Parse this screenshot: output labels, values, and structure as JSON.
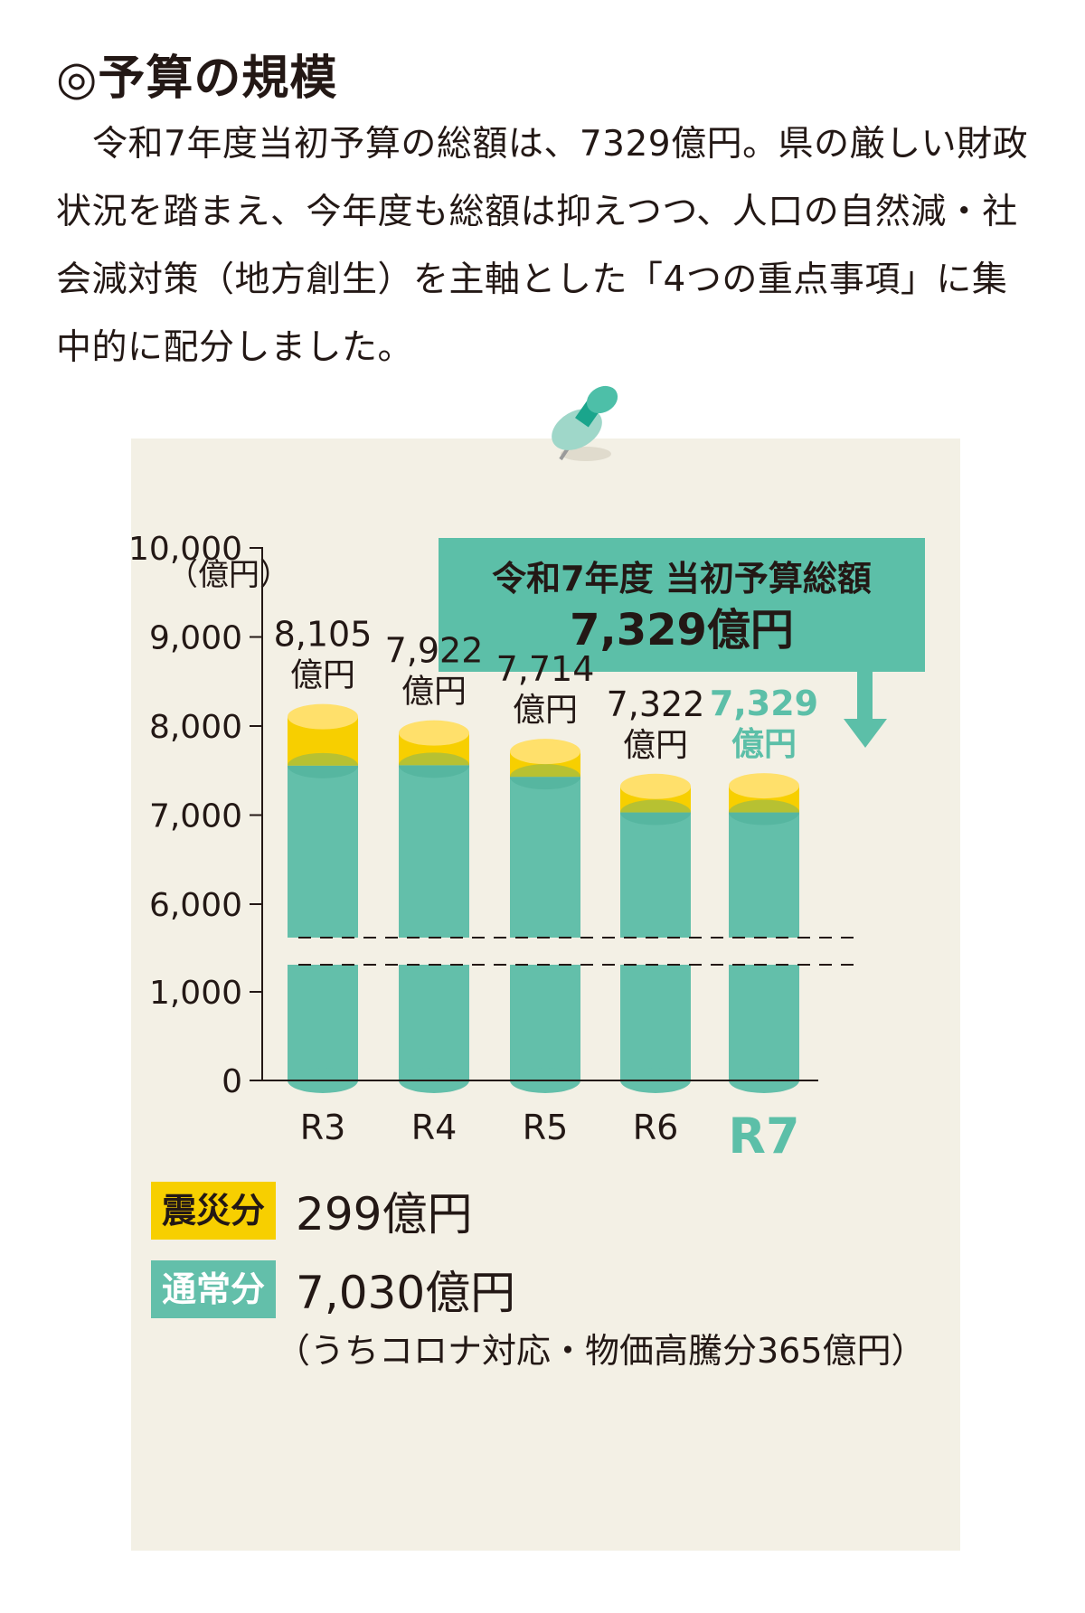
{
  "heading": "◎予算の規模",
  "paragraph": "令和7年度当初予算の総額は、7329億円。県の厳しい財政状況を踏まえ、今年度も総額は抑えつつ、人口の自然減・社会減対策（地方創生）を主軸とした「4つの重点事項」に集中的に配分しました。",
  "callout": {
    "line1": "令和7年度 当初予算総額",
    "line2": "7,329億円"
  },
  "colors": {
    "normal": "#63bfaa",
    "normal_dark": "#3fa58e",
    "normal_top": "#7fd0bd",
    "disaster": "#f7cf00",
    "disaster_top": "#ffe06b",
    "highlight": "#5cbfa8",
    "panel": "#f3f0e5"
  },
  "chart_data": {
    "type": "bar",
    "ylabel": "（億円）",
    "yticks": [
      "0",
      "1,000",
      "6,000",
      "7,000",
      "8,000",
      "9,000",
      "10,000"
    ],
    "axis_break": [
      1000,
      6000
    ],
    "categories": [
      "R3",
      "R4",
      "R5",
      "R6",
      "R7"
    ],
    "series": [
      {
        "name": "通常分",
        "values": [
          7555,
          7560,
          7430,
          7030,
          7030
        ]
      },
      {
        "name": "震災分",
        "values": [
          550,
          362,
          284,
          292,
          299
        ]
      }
    ],
    "totals": [
      8105,
      7922,
      7714,
      7322,
      7329
    ],
    "total_labels": [
      "8,105",
      "7,922",
      "7,714",
      "7,322",
      "7,329"
    ],
    "unit": "億円",
    "highlight_index": 4
  },
  "legend": {
    "disaster": {
      "label": "震災分",
      "value": "299億円"
    },
    "normal": {
      "label": "通常分",
      "value": "7,030億円",
      "note": "（うちコロナ対応・物価高騰分365億円）"
    }
  }
}
